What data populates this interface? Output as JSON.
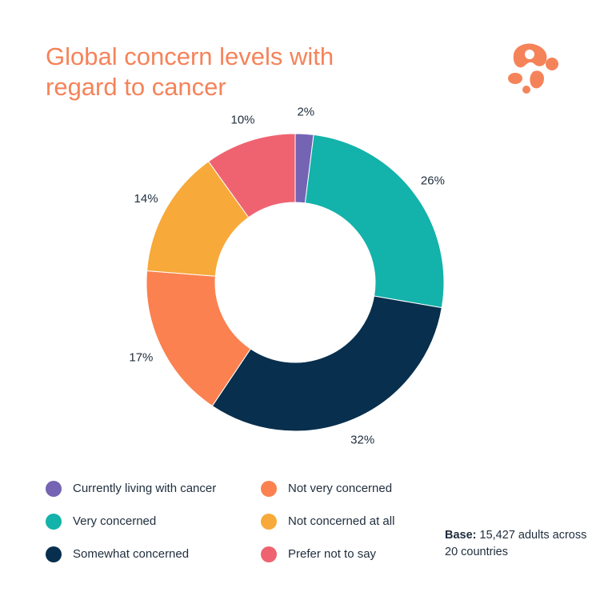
{
  "chart_data": {
    "type": "pie",
    "title": "Global concern levels with\nregard to cancer",
    "donut": true,
    "categories": [
      "Currently living with cancer",
      "Very concerned",
      "Somewhat concerned",
      "Not very concerned",
      "Not concerned at all",
      "Prefer not to say"
    ],
    "values": [
      2,
      26,
      32,
      17,
      14,
      10
    ],
    "value_labels": [
      "2%",
      "26%",
      "32%",
      "17%",
      "14%",
      "10%"
    ],
    "colors": [
      "#7563b3",
      "#13b2aa",
      "#082f4d",
      "#fb8150",
      "#f7a939",
      "#ef6371"
    ],
    "legend_position": "bottom"
  },
  "note": {
    "label": "Base:",
    "text": " 15,427 adults across 20 countries"
  },
  "logo": {
    "icon": "brand-logo-icon",
    "color": "#f5835a"
  }
}
